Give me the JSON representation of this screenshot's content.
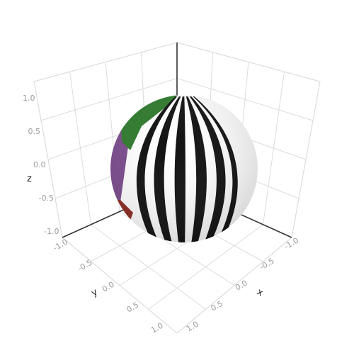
{
  "chart_data": {
    "type": "surface3d",
    "title": "",
    "xlabel": "x",
    "ylabel": "y",
    "zlabel": "z",
    "xlim": [
      -1,
      1
    ],
    "ylim": [
      -1,
      1
    ],
    "zlim": [
      -1,
      1
    ],
    "x_ticks": [
      "-1.0",
      "-0.5",
      "0.0",
      "0.5",
      "1.0"
    ],
    "y_ticks": [
      "-1.0",
      "-0.5",
      "0.0",
      "0.5",
      "1.0"
    ],
    "z_ticks": [
      "-1.0",
      "-0.5",
      "0.0",
      "0.5",
      "1.0"
    ],
    "grid": true,
    "surface": {
      "shape": "unit sphere with striped bands",
      "colors": {
        "stripe_dark": "#111111",
        "stripe_light": "#ffffff",
        "green": "#2f7a2c",
        "purple": "#7a4a8c",
        "red": "#8e2a22"
      }
    }
  }
}
